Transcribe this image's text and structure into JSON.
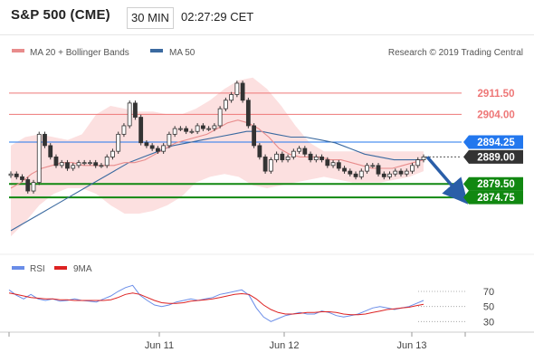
{
  "header": {
    "title": "S&P 500 (CME)",
    "timeframe": "30 MIN",
    "time": "02:27:29 CET"
  },
  "colors": {
    "resistance": "#ee7777",
    "support": "#118811",
    "pivot": "#2277ee",
    "current": "#333333",
    "ma20": "#e88c8c",
    "ma50": "#3b6aa0",
    "bollinger_fill": "#fbd6d6",
    "rsi": "#6a8de8",
    "rsi_ma": "#dd2222",
    "arrow": "#2a5ea8",
    "candle": "#333333"
  },
  "chart_data": [
    {
      "type": "candlestick",
      "legend": [
        {
          "name": "MA 20 + Bollinger Bands",
          "color": "#e88c8c"
        },
        {
          "name": "MA 50",
          "color": "#3b6aa0"
        }
      ],
      "attribution": "Research © 2019 Trading Central",
      "x_tick_labels": [
        "Jun 11",
        "Jun 12",
        "Jun 13"
      ],
      "ylim": [
        2855,
        2922
      ],
      "levels": [
        {
          "label": "2911.50",
          "value": 2911.5,
          "kind": "resistance"
        },
        {
          "label": "2904.00",
          "value": 2904.0,
          "kind": "resistance"
        },
        {
          "label": "2894.25",
          "value": 2894.25,
          "kind": "pivot"
        },
        {
          "label": "2889.00",
          "value": 2889.0,
          "kind": "current"
        },
        {
          "label": "2879.50",
          "value": 2879.5,
          "kind": "support"
        },
        {
          "label": "2874.75",
          "value": 2874.75,
          "kind": "support"
        }
      ],
      "projection": {
        "from_value": 2889.0,
        "to_value": 2874.75,
        "direction": "down"
      },
      "price_path": [
        2883,
        2882,
        2881,
        2877,
        2880,
        2897,
        2893,
        2889,
        2886,
        2887,
        2885,
        2886,
        2887,
        2887,
        2887,
        2886,
        2886,
        2889,
        2891,
        2897,
        2900,
        2908,
        2903,
        2894,
        2893,
        2892,
        2891,
        2893,
        2897,
        2899,
        2899,
        2898,
        2898,
        2900,
        2899,
        2899,
        2900,
        2906,
        2909,
        2911,
        2915,
        2909,
        2900,
        2893,
        2889,
        2884,
        2888,
        2890,
        2888,
        2889,
        2891,
        2892,
        2890,
        2888,
        2889,
        2888,
        2886,
        2887,
        2885,
        2884,
        2883,
        2882,
        2884,
        2886,
        2886,
        2883,
        2882,
        2883,
        2884,
        2883,
        2884,
        2886,
        2888,
        2889
      ],
      "ma20": [
        2878,
        2880,
        2883,
        2885,
        2886,
        2887,
        2887,
        2886,
        2886,
        2886,
        2886,
        2887,
        2887,
        2888,
        2890,
        2892,
        2894,
        2895,
        2896,
        2897,
        2899,
        2901,
        2902,
        2901,
        2899,
        2896,
        2892,
        2890,
        2889,
        2889,
        2889,
        2888,
        2888,
        2887,
        2886,
        2885,
        2885,
        2885,
        2886,
        2887,
        2888
      ],
      "bollinger_upper": [
        2893,
        2896,
        2897,
        2896,
        2895,
        2897,
        2904,
        2907,
        2906,
        2905,
        2905,
        2904,
        2904,
        2906,
        2909,
        2913,
        2916,
        2917,
        2913,
        2907,
        2900,
        2894,
        2891,
        2891,
        2891,
        2891,
        2891,
        2891,
        2891,
        2891
      ],
      "bollinger_lower": [
        2861,
        2866,
        2872,
        2876,
        2878,
        2878,
        2876,
        2872,
        2869,
        2869,
        2870,
        2872,
        2875,
        2880,
        2882,
        2883,
        2882,
        2879,
        2878,
        2879,
        2880,
        2881,
        2882,
        2881,
        2880,
        2880,
        2880,
        2881,
        2882,
        2884
      ],
      "ma50": [
        2863,
        2866,
        2869,
        2872,
        2875,
        2878,
        2881,
        2884,
        2887,
        2889,
        2891,
        2893,
        2894,
        2895,
        2896,
        2897,
        2898,
        2898,
        2897,
        2896,
        2896,
        2895,
        2894,
        2892,
        2890,
        2889,
        2888,
        2888,
        2888
      ]
    },
    {
      "type": "line",
      "legend": [
        {
          "name": "RSI",
          "color": "#6a8de8"
        },
        {
          "name": "9MA",
          "color": "#dd2222"
        }
      ],
      "y_tick_labels": [
        "70",
        "50",
        "30"
      ],
      "ylim": [
        22,
        82
      ],
      "series": [
        {
          "name": "RSI",
          "values": [
            72,
            65,
            60,
            66,
            60,
            58,
            60,
            57,
            58,
            60,
            58,
            57,
            56,
            60,
            64,
            70,
            75,
            78,
            65,
            58,
            52,
            50,
            52,
            56,
            58,
            60,
            58,
            60,
            62,
            66,
            68,
            70,
            72,
            65,
            48,
            36,
            30,
            34,
            38,
            40,
            42,
            40,
            40,
            44,
            42,
            38,
            36,
            38,
            40,
            44,
            48,
            50,
            48,
            46,
            48,
            50,
            54,
            58
          ]
        },
        {
          "name": "9MA",
          "values": [
            68,
            66,
            64,
            62,
            61,
            60,
            60,
            59,
            59,
            58,
            58,
            58,
            58,
            58,
            59,
            62,
            66,
            68,
            66,
            62,
            58,
            55,
            54,
            54,
            55,
            57,
            58,
            59,
            60,
            62,
            64,
            66,
            67,
            66,
            60,
            52,
            46,
            42,
            40,
            40,
            41,
            42,
            42,
            43,
            43,
            42,
            40,
            39,
            39,
            40,
            42,
            44,
            46,
            47,
            48,
            49,
            51,
            53
          ]
        }
      ]
    }
  ]
}
